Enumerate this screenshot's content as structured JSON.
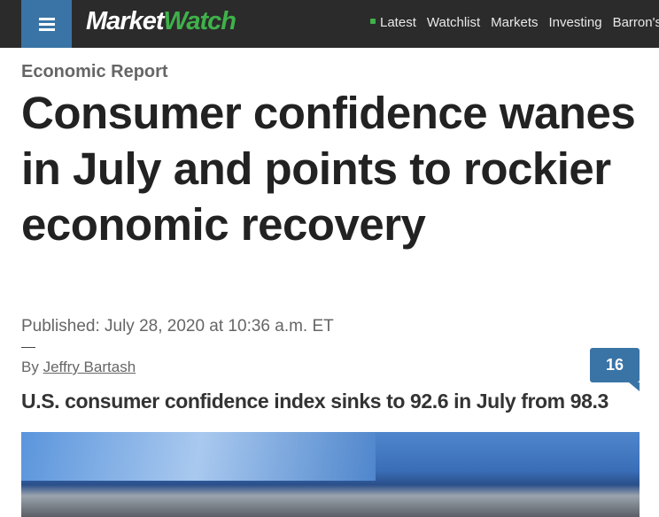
{
  "header": {
    "logo_market": "Market",
    "logo_watch": "Watch",
    "nav": [
      "Latest",
      "Watchlist",
      "Markets",
      "Investing",
      "Barron's"
    ]
  },
  "colors": {
    "accent": "#3a74a6",
    "brand_green": "#3fb14a",
    "header_bg": "#2b2b2b"
  },
  "article": {
    "kicker": "Economic Report",
    "headline": "Consumer confidence wanes in July and points to rockier economic recovery",
    "published": "Published: July 28, 2020 at 10:36 a.m. ET",
    "by_label": "By",
    "author": "Jeffry Bartash",
    "comments_count": "16",
    "subheadline": "U.S. consumer confidence index sinks to 92.6 in July from 98.3"
  }
}
